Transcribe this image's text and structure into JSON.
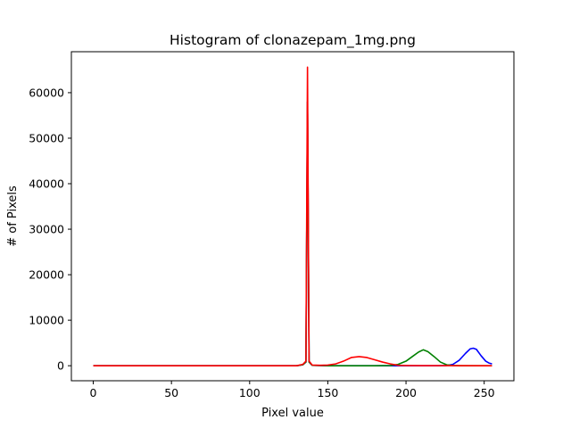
{
  "chart_data": {
    "type": "line",
    "title": "Histogram of clonazepam_1mg.png",
    "xlabel": "Pixel value",
    "ylabel": "# of Pixels",
    "xlim": [
      -14,
      269
    ],
    "ylim": [
      -3300,
      69000
    ],
    "xticks": [
      0,
      50,
      100,
      150,
      200,
      250
    ],
    "yticks": [
      0,
      10000,
      20000,
      30000,
      40000,
      50000,
      60000
    ],
    "grid": false,
    "legend": "none",
    "series": [
      {
        "color": "#0000ff",
        "points": [
          [
            0,
            0
          ],
          [
            130,
            0
          ],
          [
            134,
            200
          ],
          [
            136,
            800
          ],
          [
            137,
            58000
          ],
          [
            138,
            800
          ],
          [
            140,
            100
          ],
          [
            150,
            0
          ],
          [
            220,
            0
          ],
          [
            226,
            50
          ],
          [
            230,
            300
          ],
          [
            234,
            1200
          ],
          [
            238,
            2700
          ],
          [
            241,
            3700
          ],
          [
            243,
            3850
          ],
          [
            245,
            3600
          ],
          [
            248,
            2200
          ],
          [
            251,
            1000
          ],
          [
            253,
            600
          ],
          [
            255,
            400
          ]
        ]
      },
      {
        "color": "#008000",
        "points": [
          [
            0,
            0
          ],
          [
            130,
            0
          ],
          [
            134,
            200
          ],
          [
            136,
            800
          ],
          [
            137,
            58000
          ],
          [
            138,
            800
          ],
          [
            140,
            100
          ],
          [
            150,
            0
          ],
          [
            180,
            0
          ],
          [
            190,
            50
          ],
          [
            195,
            300
          ],
          [
            200,
            1000
          ],
          [
            204,
            2000
          ],
          [
            208,
            3000
          ],
          [
            211,
            3500
          ],
          [
            214,
            3100
          ],
          [
            218,
            2000
          ],
          [
            222,
            800
          ],
          [
            226,
            200
          ],
          [
            230,
            50
          ],
          [
            235,
            0
          ],
          [
            255,
            0
          ]
        ]
      },
      {
        "color": "#ff0000",
        "points": [
          [
            0,
            0
          ],
          [
            130,
            0
          ],
          [
            134,
            300
          ],
          [
            136,
            1000
          ],
          [
            137,
            65600
          ],
          [
            138,
            1000
          ],
          [
            140,
            150
          ],
          [
            145,
            100
          ],
          [
            150,
            150
          ],
          [
            155,
            400
          ],
          [
            160,
            1000
          ],
          [
            165,
            1800
          ],
          [
            170,
            2000
          ],
          [
            175,
            1800
          ],
          [
            180,
            1300
          ],
          [
            185,
            800
          ],
          [
            190,
            400
          ],
          [
            195,
            100
          ],
          [
            200,
            50
          ],
          [
            210,
            20
          ],
          [
            255,
            0
          ]
        ]
      }
    ]
  }
}
